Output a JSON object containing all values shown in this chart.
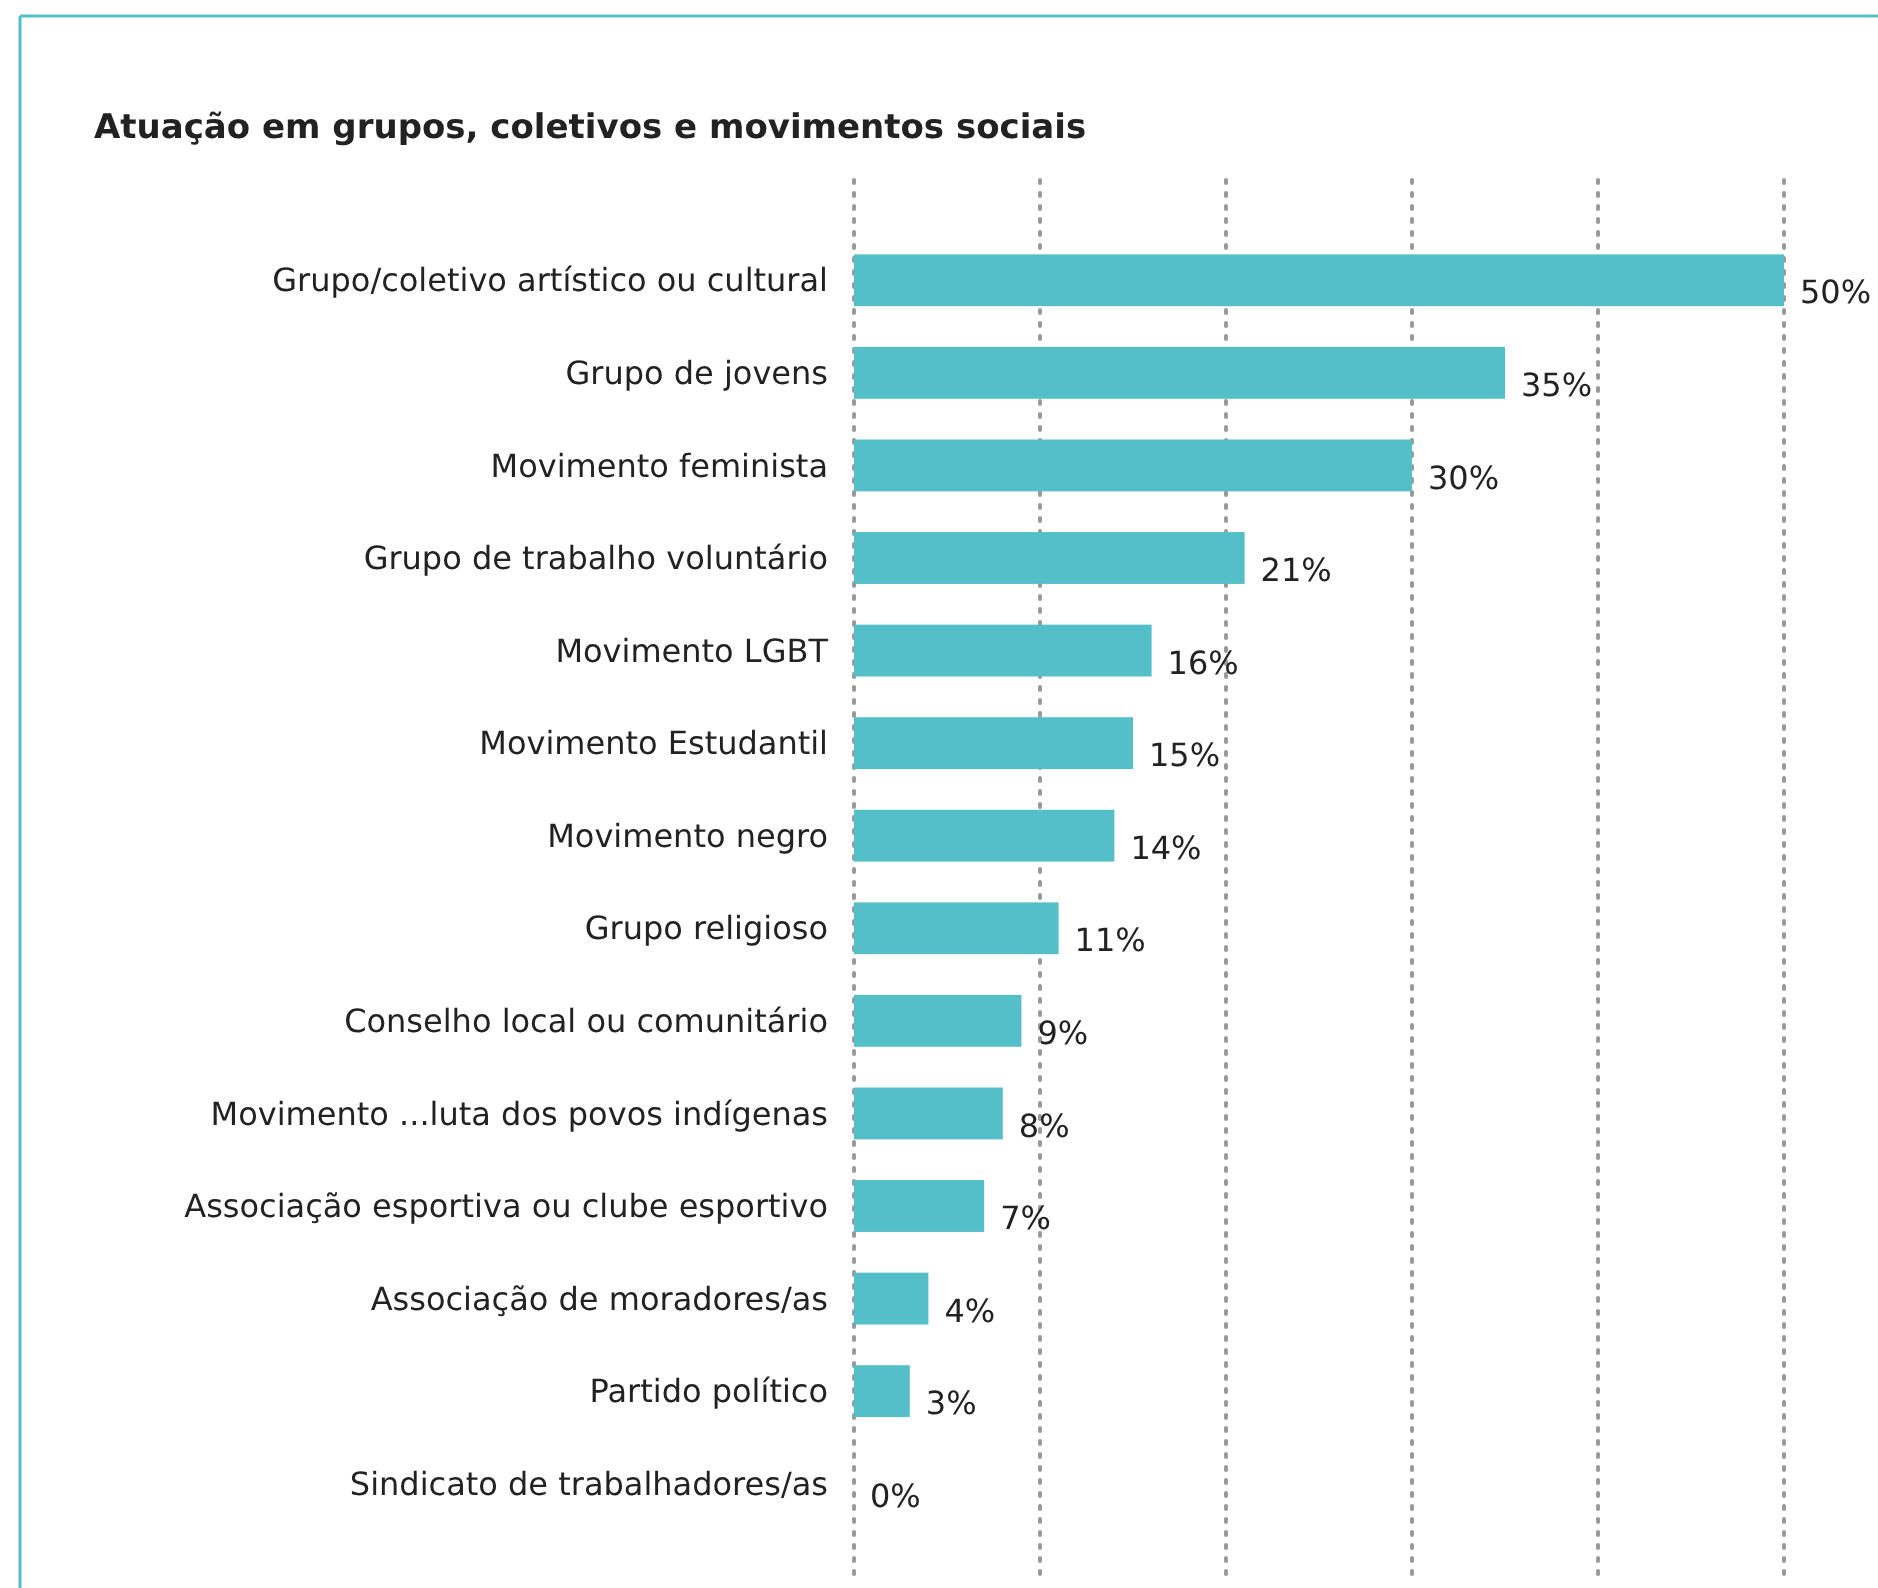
{
  "chart_data": {
    "type": "bar",
    "orientation": "horizontal",
    "title": "Atuação em grupos, coletivos e movimentos sociais",
    "categories": [
      "Grupo/coletivo artístico ou cultural",
      "Grupo de jovens",
      "Movimento feminista",
      "Grupo de trabalho voluntário",
      "Movimento LGBT",
      "Movimento Estudantil",
      "Movimento negro",
      "Grupo religioso",
      "Conselho local ou comunitário",
      "Movimento ...luta dos povos indígenas",
      "Associação esportiva ou clube esportivo",
      "Associação de moradores/as",
      "Partido político",
      "Sindicato de trabalhadores/as"
    ],
    "values": [
      50,
      35,
      30,
      21,
      16,
      15,
      14,
      11,
      9,
      8,
      7,
      4,
      3,
      0
    ],
    "value_labels": [
      "50%",
      "35%",
      "30%",
      "21%",
      "16%",
      "15%",
      "14%",
      "11%",
      "9%",
      "8%",
      "7%",
      "4%",
      "3%",
      "0%"
    ],
    "color": "#55bfc9",
    "xlim": [
      0,
      50
    ],
    "xticks": [
      {
        "value": 0,
        "label": null
      },
      {
        "value": 10,
        "label": null
      },
      {
        "value": 20,
        "label": null
      },
      {
        "value": 30,
        "label": null
      },
      {
        "value": 40,
        "label": null
      },
      {
        "value": 50,
        "label": null
      }
    ],
    "tick_labels": "y",
    "grid": "x"
  }
}
